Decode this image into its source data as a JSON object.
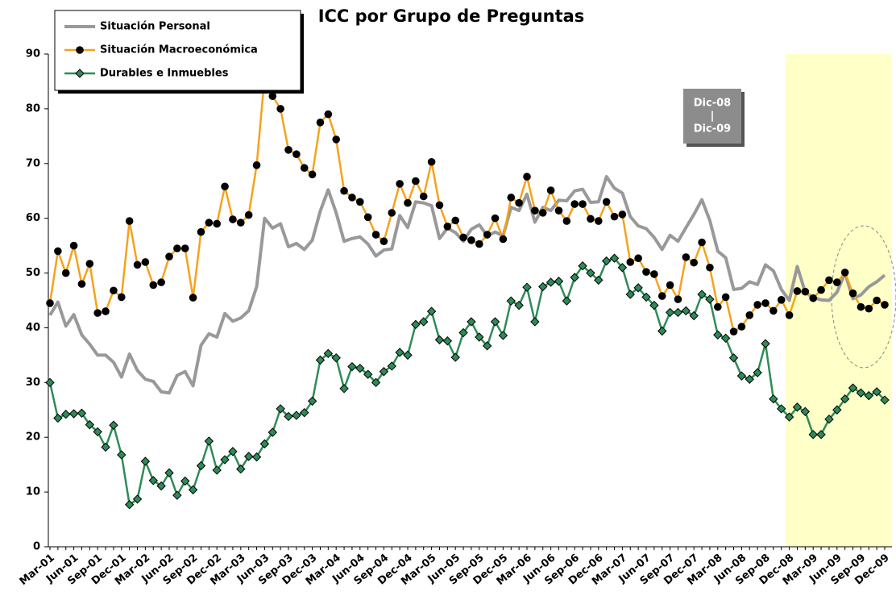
{
  "chart_data": {
    "type": "line",
    "title": "ICC por Grupo de Preguntas",
    "categories": [
      "Mar-01",
      null,
      null,
      "Jun-01",
      null,
      null,
      "Sep-01",
      null,
      null,
      "Dec-01",
      null,
      null,
      "Mar-02",
      null,
      null,
      "Jun-02",
      null,
      null,
      "Sep-02",
      null,
      null,
      "Dec-02",
      null,
      null,
      "Mar-03",
      null,
      null,
      "Jun-03",
      null,
      null,
      "Sep-03",
      null,
      null,
      "Dec-03",
      null,
      null,
      "Mar-04",
      null,
      null,
      "Jun-04",
      null,
      null,
      "Sep-04",
      null,
      null,
      "Dec-04",
      null,
      null,
      "Mar-05",
      null,
      null,
      "Jun-05",
      null,
      null,
      "Sep-05",
      null,
      null,
      "Dec-05",
      null,
      null,
      "Mar-06",
      null,
      null,
      "Jun-06",
      null,
      null,
      "Sep-06",
      null,
      null,
      "Dec-06",
      null,
      null,
      "Mar-07",
      null,
      null,
      "Jun-07",
      null,
      null,
      "Sep-07",
      null,
      null,
      "Dec-07",
      null,
      null,
      "Mar-08",
      null,
      null,
      "Jun-08",
      null,
      null,
      "Sep-08",
      null,
      null,
      "Dec-08",
      null,
      null,
      "Mar-09",
      null,
      null,
      "Jun-09",
      null,
      null,
      "Sep-09",
      null,
      null,
      "Dec-09"
    ],
    "series": [
      {
        "name": "Situación Personal",
        "color": "#999999",
        "marker": "none",
        "values": [
          42.3,
          44.7,
          40.3,
          42.4,
          38.7,
          37,
          35,
          35,
          33.7,
          31,
          35.2,
          32.2,
          30.6,
          30.2,
          28.3,
          28.1,
          31.3,
          32,
          29.4,
          36.8,
          38.9,
          38.3,
          42.6,
          41.2,
          41.8,
          43.1,
          47.5,
          60,
          58.2,
          59,
          54.8,
          55.4,
          54.3,
          56,
          61.3,
          65.2,
          61,
          55.8,
          56.3,
          56.6,
          55.3,
          53.1,
          54.2,
          54.4,
          60.5,
          58.3,
          63,
          62.8,
          62.3,
          56.3,
          58.2,
          57.4,
          55.8,
          58,
          58.8,
          56.8,
          57.5,
          56.8,
          62,
          61.4,
          64.4,
          59.3,
          62,
          61.4,
          63.3,
          63.2,
          65,
          65.3,
          62.9,
          63,
          67.6,
          65.5,
          64.6,
          60.3,
          58.6,
          58.1,
          56.5,
          54.3,
          56.9,
          55.8,
          58.3,
          60.7,
          63.4,
          59.6,
          54,
          52.8,
          47,
          47.2,
          48.4,
          47.9,
          51.5,
          50.4,
          47,
          45,
          51.2,
          46.5,
          45.5,
          45.1,
          45,
          46.5,
          50,
          45.3,
          46,
          47.5,
          48.4,
          49.6
        ]
      },
      {
        "name": "Situación Macroeconómica",
        "color": "#f5a31a",
        "marker": "circle",
        "values": [
          44.5,
          54,
          50,
          55,
          48,
          51.7,
          42.7,
          43,
          46.8,
          45.6,
          59.5,
          51.5,
          52,
          47.8,
          48.3,
          53,
          54.5,
          54.5,
          45.5,
          57.5,
          59.2,
          59,
          65.8,
          59.8,
          59.2,
          60.6,
          69.7,
          85.8,
          82.3,
          80,
          72.5,
          71.7,
          69.2,
          68,
          77.5,
          79,
          74.4,
          65,
          63.8,
          63,
          60.2,
          57,
          55.8,
          61,
          66.3,
          62.8,
          66.8,
          64,
          70.3,
          62.4,
          58.5,
          59.6,
          56.5,
          56,
          55.3,
          57,
          60,
          56.2,
          63.8,
          62.8,
          67.6,
          61.4,
          61,
          65.1,
          61.4,
          59.5,
          62.6,
          62.6,
          59.9,
          59.5,
          63,
          60.3,
          60.7,
          52,
          52.7,
          50.2,
          49.8,
          45.8,
          47.8,
          45.2,
          52.9,
          51.9,
          55.6,
          51,
          43.8,
          45.6,
          39.3,
          40.2,
          42.3,
          44.2,
          44.5,
          43.1,
          45.1,
          42.3,
          46.7,
          46.6,
          45.4,
          46.9,
          48.7,
          48.3,
          50.1,
          46.3,
          43.8,
          43.5,
          45,
          44.2
        ]
      },
      {
        "name": "Durables e Inmuebles",
        "color": "#2e8b57",
        "marker": "diamond",
        "values": [
          30,
          23.5,
          24.2,
          24.3,
          24.4,
          22.3,
          21,
          18.2,
          22.2,
          16.8,
          7.7,
          8.7,
          15.6,
          12.1,
          11.1,
          13.5,
          9.4,
          12,
          10.4,
          14.8,
          19.3,
          14,
          15.9,
          17.4,
          14.2,
          16.5,
          16.4,
          18.8,
          20.9,
          25.2,
          23.8,
          24,
          24.5,
          26.6,
          34.1,
          35.3,
          34.5,
          28.9,
          32.9,
          32.6,
          31.5,
          30,
          32,
          33,
          35.5,
          35,
          40.6,
          41.1,
          43,
          37.8,
          37.6,
          34.6,
          39.1,
          41.1,
          38.3,
          36.7,
          41.1,
          38.6,
          44.9,
          44.1,
          47.4,
          41.1,
          47.5,
          48.3,
          48.5,
          44.9,
          49.2,
          51.3,
          50,
          48.7,
          52.2,
          52.7,
          51,
          46.1,
          47.3,
          45.6,
          44.1,
          39.4,
          42.8,
          42.8,
          43.1,
          42.2,
          46.1,
          45.2,
          38.7,
          38.1,
          34.5,
          31.2,
          30.6,
          31.8,
          37.1,
          27,
          25.2,
          23.7,
          25.5,
          24.7,
          20.5,
          20.5,
          23.3,
          25,
          27,
          29,
          28.1,
          27.6,
          28.3,
          26.8
        ]
      }
    ],
    "ylim": [
      0,
      90
    ],
    "yticks": [
      0,
      10,
      20,
      30,
      40,
      50,
      60,
      70,
      80,
      90
    ],
    "annotation": [
      "Dic-08",
      "|",
      "Dic-09"
    ]
  }
}
